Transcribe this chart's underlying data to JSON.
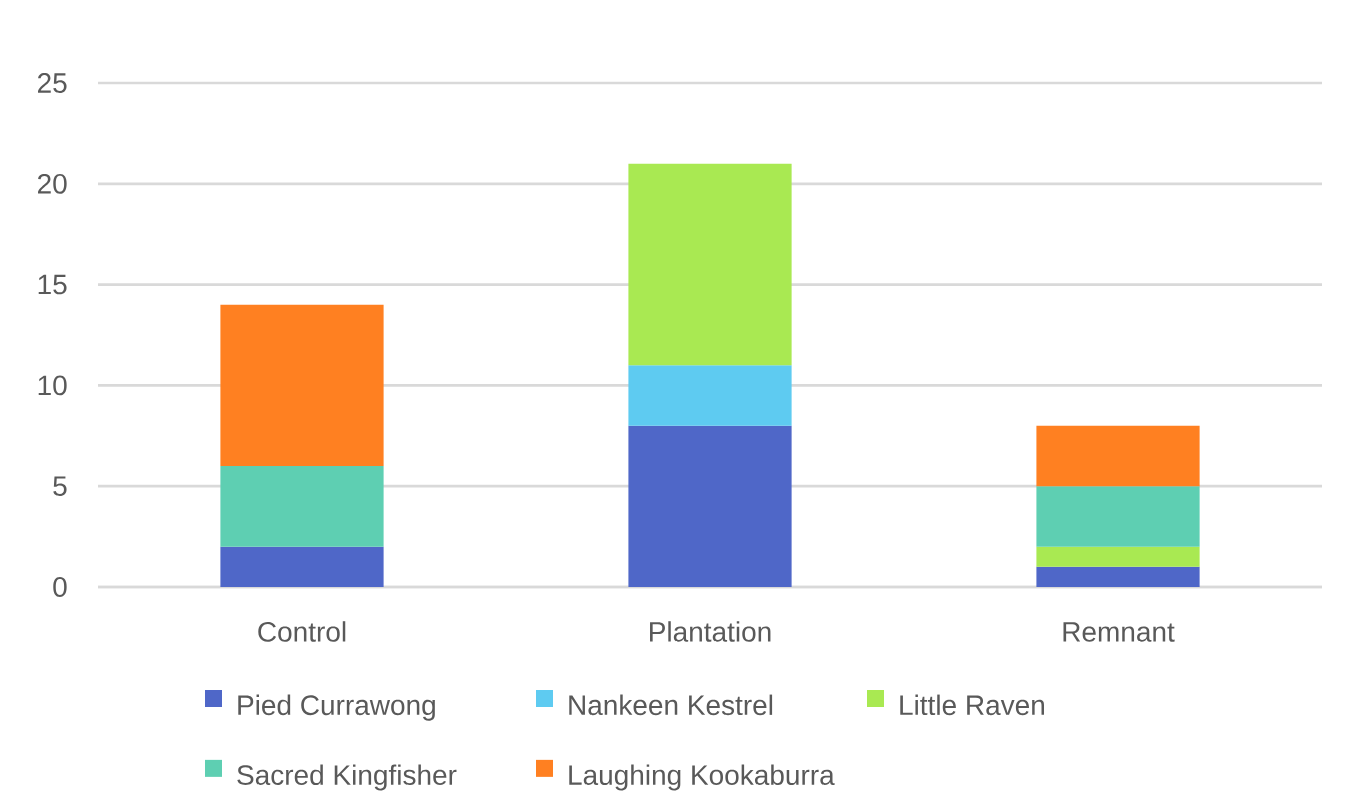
{
  "chart_data": {
    "type": "bar",
    "stacked": true,
    "categories": [
      "Control",
      "Plantation",
      "Remnant"
    ],
    "series": [
      {
        "name": "Pied Currawong",
        "color": "#4f67c8",
        "values": [
          2,
          8,
          1
        ]
      },
      {
        "name": "Nankeen Kestrel",
        "color": "#5ecbf1",
        "values": [
          null,
          3,
          null
        ]
      },
      {
        "name": "Little Raven",
        "color": "#a9e952",
        "values": [
          null,
          10,
          1
        ]
      },
      {
        "name": "Sacred Kingfisher",
        "color": "#5ecfb2",
        "values": [
          4,
          null,
          3
        ]
      },
      {
        "name": "Laughing Kookaburra",
        "color": "#ff8021",
        "values": [
          8,
          null,
          3
        ]
      }
    ],
    "ylim": [
      0,
      25
    ],
    "yticks": [
      0,
      5,
      10,
      15,
      20,
      25
    ],
    "grid": "y",
    "legend": "bottom"
  }
}
